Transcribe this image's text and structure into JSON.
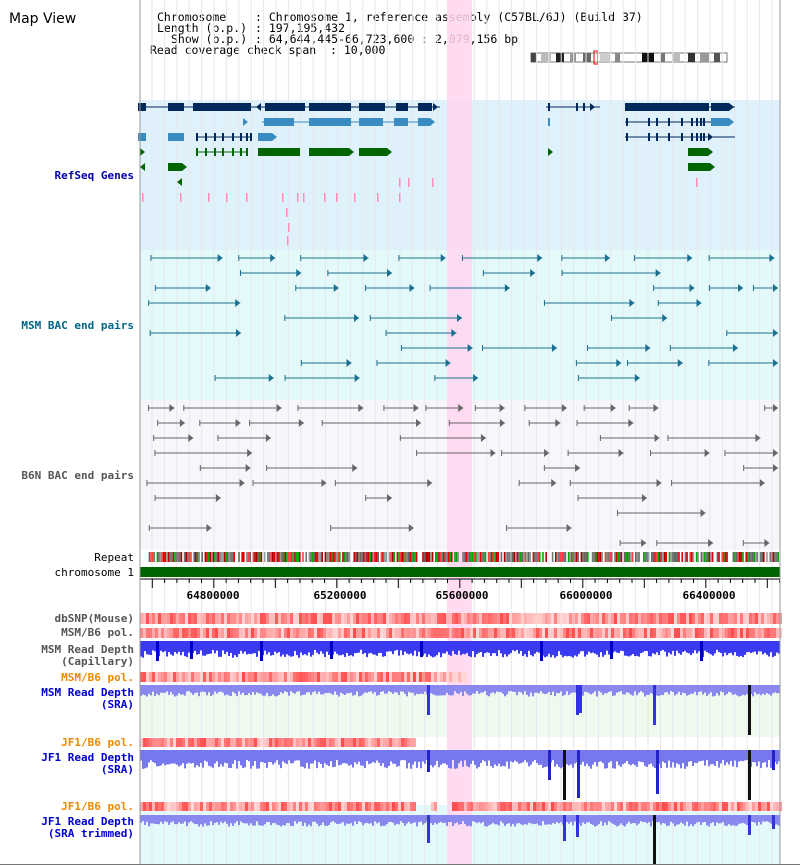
{
  "window": {
    "title": "Map View"
  },
  "header": {
    "chromosome_label": "Chromosome",
    "chromosome_value": ": Chromosome 1, reference assembly (C57BL/6J) (Build 37)",
    "length_label": "Length (b.p.)",
    "length_value": ": 197,195,432",
    "show_label": "Show (b.p.)",
    "show_value": ": 64,644,445-66,723,600 : 2,079,156 bp",
    "coverage_label": "Read coverage check span",
    "coverage_value": ": 10,000"
  },
  "tracks": {
    "refseq": "RefSeq Genes",
    "msm_bac": "MSM BAC end pairs",
    "b6n_bac": "B6N BAC end pairs",
    "repeat": "Repeat",
    "chromosome": "chromosome 1",
    "dbsnp": "dbSNP(Mouse)",
    "msm_b6_pol": "MSM/B6 pol.",
    "msm_depth_cap_1": "MSM Read Depth",
    "msm_depth_cap_2": "(Capillary)",
    "msm_b6_pol_2": "MSM/B6 pol.",
    "msm_depth_sra_1": "MSM Read Depth",
    "msm_depth_sra_2": "(SRA)",
    "jf1_b6_pol": "JF1/B6 pol.",
    "jf1_depth_sra_1": "JF1 Read Depth",
    "jf1_depth_sra_2": "(SRA)",
    "jf1_b6_pol_2": "JF1/B6 pol.",
    "jf1_depth_trim_1": "JF1 Read Depth",
    "jf1_depth_trim_2": "(SRA trimmed)"
  },
  "axis": {
    "ticks": [
      "64800000",
      "65200000",
      "65600000",
      "66000000",
      "66400000"
    ]
  },
  "colors": {
    "refseq_label": "#0000aa",
    "msm_label": "#006688",
    "b6n_label": "#555555",
    "orange_label": "#ee8800",
    "blue_label": "#0000cc",
    "gene_dark": "#00285a",
    "gene_mid": "#3a8cc0",
    "gene_green": "#006400",
    "highlight": "#ffd6f0",
    "chrom_bar": "#006400"
  }
}
